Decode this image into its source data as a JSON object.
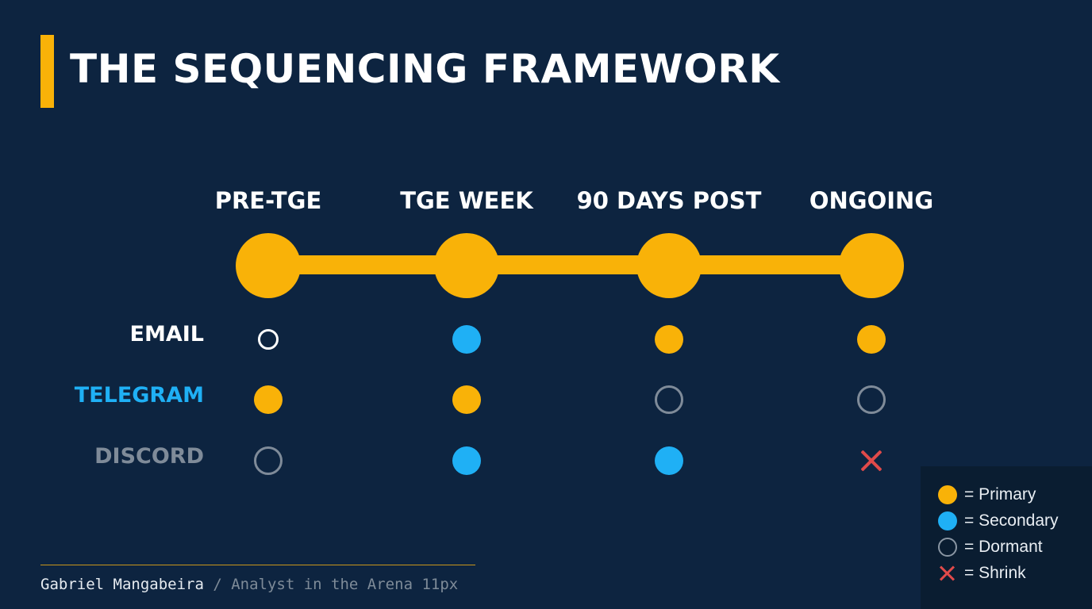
{
  "title": "THE SEQUENCING FRAMEWORK",
  "phases": [
    "PRE-TGE",
    "TGE WEEK",
    "90 DAYS POST",
    "ONGOING"
  ],
  "channels": [
    {
      "name": "EMAIL",
      "color": "#ffffff",
      "states": [
        "dormant-light",
        "secondary",
        "primary",
        "primary"
      ]
    },
    {
      "name": "TELEGRAM",
      "color": "#1fb0f5",
      "states": [
        "primary",
        "primary",
        "dormant",
        "dormant"
      ]
    },
    {
      "name": "DISCORD",
      "color": "#7f8b99",
      "states": [
        "dormant",
        "secondary",
        "secondary",
        "shrink"
      ]
    }
  ],
  "legend": [
    {
      "key": "primary",
      "label": "= Primary"
    },
    {
      "key": "secondary",
      "label": "= Secondary"
    },
    {
      "key": "dormant",
      "label": "= Dormant"
    },
    {
      "key": "shrink",
      "label": "= Shrink"
    }
  ],
  "credit": {
    "name": "Gabriel Mangabeira",
    "rest": " / Analyst in the Arena 11px"
  },
  "colors": {
    "background": "#0d2440",
    "accent": "#f9b208",
    "secondary": "#1fb0f5",
    "dormant": "#7f8b99",
    "shrink": "#e04a4a"
  }
}
